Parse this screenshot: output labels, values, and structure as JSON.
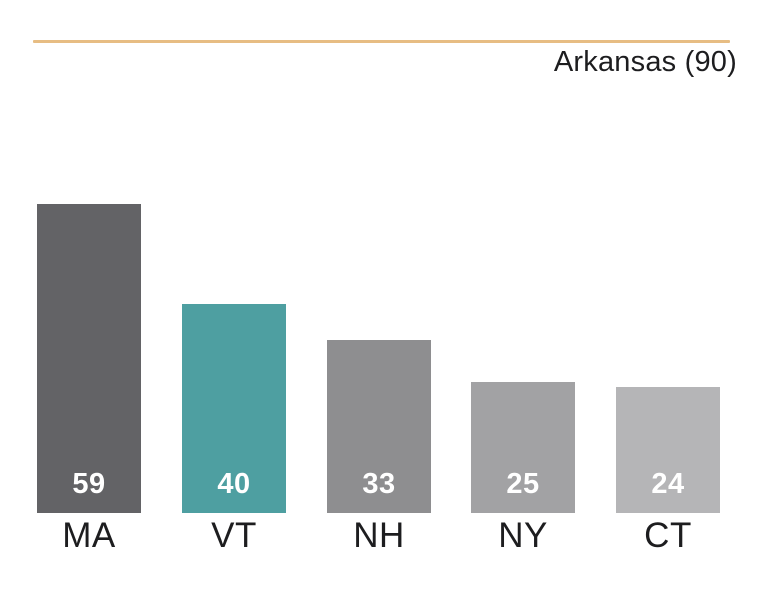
{
  "header": {
    "label": "Arkansas (90)"
  },
  "accent_line_color": "#e7bd83",
  "chart_data": {
    "type": "bar",
    "title": "Arkansas (90)",
    "categories": [
      "MA",
      "VT",
      "NH",
      "NY",
      "CT"
    ],
    "values": [
      59,
      40,
      33,
      25,
      24
    ],
    "bar_colors": [
      "#636366",
      "#4e9fa1",
      "#8e8e90",
      "#a2a2a4",
      "#b5b5b7"
    ],
    "value_label_color": "#ffffff",
    "category_label_color": "#1d1d1f",
    "xlabel": "",
    "ylabel": "",
    "grid": false,
    "legend": false,
    "value_labels_position": "inside-bottom",
    "category_labels_position": "below-bar"
  }
}
